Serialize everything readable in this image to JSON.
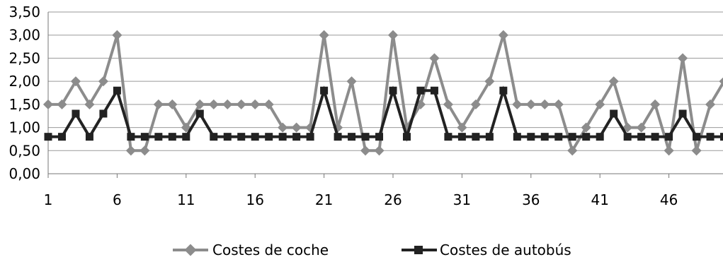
{
  "chart_data": {
    "type": "line",
    "title": "",
    "xlabel": "",
    "ylabel": "",
    "ylim": [
      0,
      3.5
    ],
    "y_ticks": [
      "0,00",
      "0,50",
      "1,00",
      "1,50",
      "2,00",
      "2,50",
      "3,00",
      "3,50"
    ],
    "x": [
      1,
      2,
      3,
      4,
      5,
      6,
      7,
      8,
      9,
      10,
      11,
      12,
      13,
      14,
      15,
      16,
      17,
      18,
      19,
      20,
      21,
      22,
      23,
      24,
      25,
      26,
      27,
      28,
      29,
      30,
      31,
      32,
      33,
      34,
      35,
      36,
      37,
      38,
      39,
      40,
      41,
      42,
      43,
      44,
      45,
      46,
      47,
      48,
      49,
      50
    ],
    "x_tick_labels": [
      "1",
      "6",
      "11",
      "16",
      "21",
      "26",
      "31",
      "36",
      "41",
      "46"
    ],
    "grid": true,
    "legend_position": "bottom",
    "series": [
      {
        "name": "Costes de coche",
        "color": "#8c8c8c",
        "marker": "diamond",
        "values": [
          1.5,
          1.5,
          2.0,
          1.5,
          2.0,
          3.0,
          0.5,
          0.5,
          1.5,
          1.5,
          1.0,
          1.5,
          1.5,
          1.5,
          1.5,
          1.5,
          1.5,
          1.0,
          1.0,
          1.0,
          3.0,
          1.0,
          2.0,
          0.5,
          0.5,
          3.0,
          1.0,
          1.5,
          2.5,
          1.5,
          1.0,
          1.5,
          2.0,
          3.0,
          1.5,
          1.5,
          1.5,
          1.5,
          0.5,
          1.0,
          1.5,
          2.0,
          1.0,
          1.0,
          1.5,
          0.5,
          2.5,
          0.5,
          1.5,
          2.0
        ]
      },
      {
        "name": "Costes de autobús",
        "color": "#222222",
        "marker": "square",
        "values": [
          0.8,
          0.8,
          1.3,
          0.8,
          1.3,
          1.8,
          0.8,
          0.8,
          0.8,
          0.8,
          0.8,
          1.3,
          0.8,
          0.8,
          0.8,
          0.8,
          0.8,
          0.8,
          0.8,
          0.8,
          1.8,
          0.8,
          0.8,
          0.8,
          0.8,
          1.8,
          0.8,
          1.8,
          1.8,
          0.8,
          0.8,
          0.8,
          0.8,
          1.8,
          0.8,
          0.8,
          0.8,
          0.8,
          0.8,
          0.8,
          0.8,
          1.3,
          0.8,
          0.8,
          0.8,
          0.8,
          1.3,
          0.8,
          0.8,
          0.8
        ]
      }
    ]
  }
}
